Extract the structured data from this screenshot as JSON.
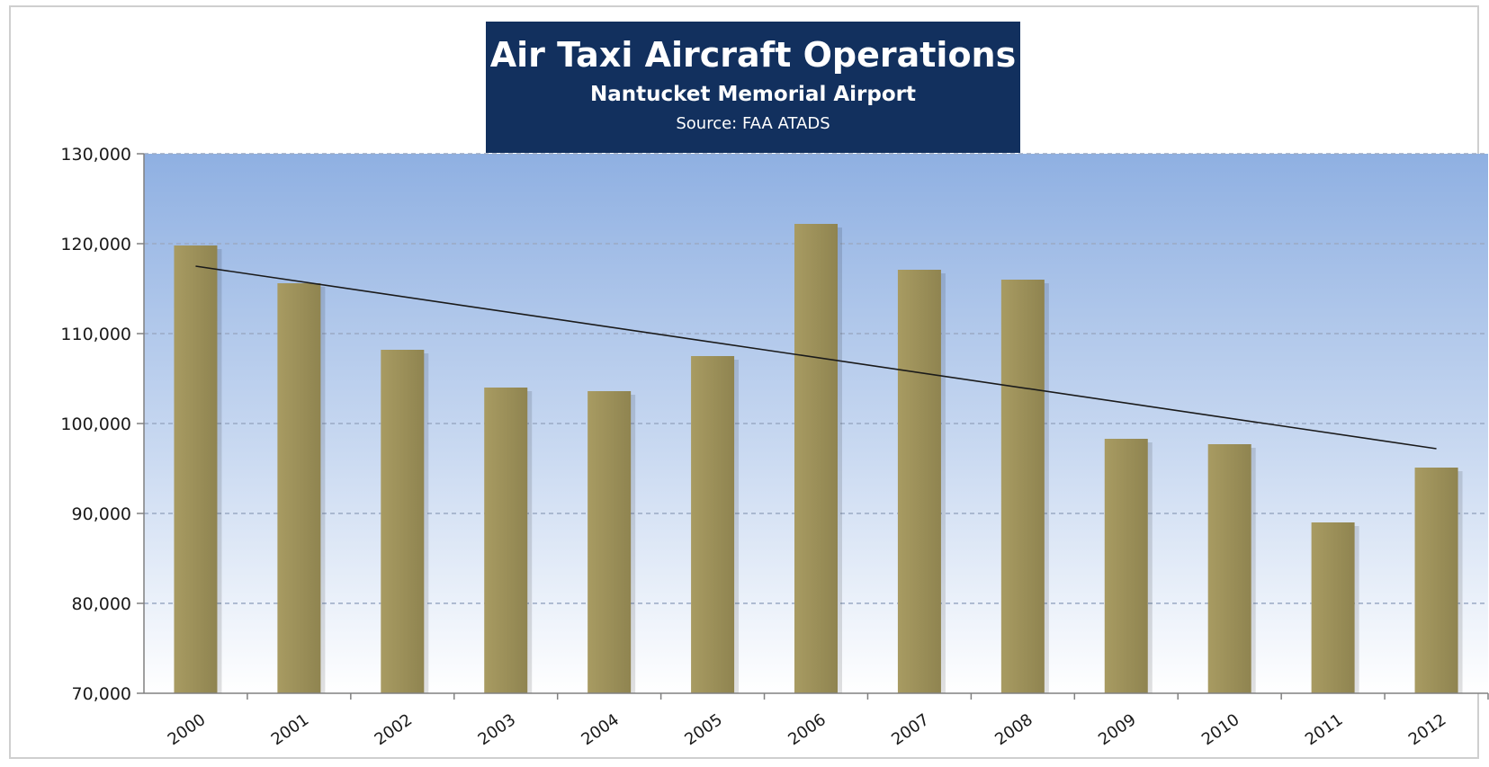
{
  "chart_data": {
    "type": "bar",
    "title": "Air Taxi Aircraft Operations",
    "subtitle": "Nantucket Memorial Airport",
    "source": "Source: FAA ATADS",
    "categories": [
      "2000",
      "2001",
      "2002",
      "2003",
      "2004",
      "2005",
      "2006",
      "2007",
      "2008",
      "2009",
      "2010",
      "2011",
      "2012"
    ],
    "values": [
      119800,
      115600,
      108200,
      104000,
      103600,
      107500,
      122200,
      117100,
      116000,
      98300,
      97700,
      89000,
      95100
    ],
    "ylim": [
      70000,
      130000
    ],
    "yticks": [
      70000,
      80000,
      90000,
      100000,
      110000,
      120000,
      130000
    ],
    "ytick_labels": [
      "70,000",
      "80,000",
      "90,000",
      "100,000",
      "110,000",
      "120,000",
      "130,000"
    ],
    "trendline": {
      "start": 117500,
      "end": 97200
    },
    "grid": true,
    "legend": "none",
    "colors": {
      "bar": "#8f8450",
      "bar_highlight": "#a89b62",
      "plot_bg_top": "#8fb0e2",
      "plot_bg_bottom": "#ffffff",
      "trendline": "#1a1a1a",
      "title_bg": "#12305e"
    }
  }
}
